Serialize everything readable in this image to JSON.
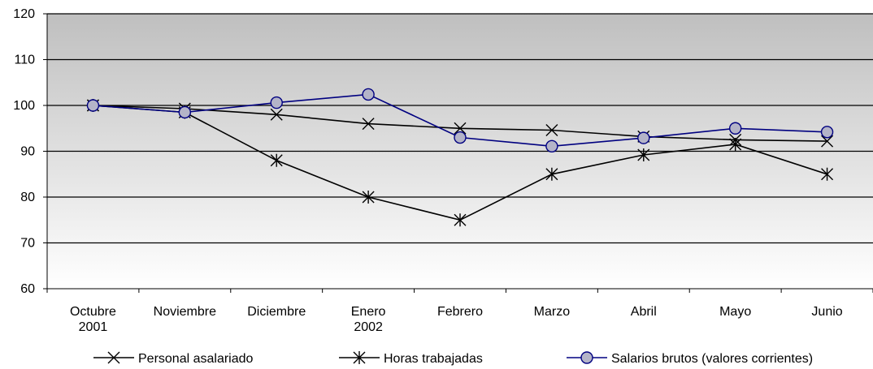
{
  "chart_data": {
    "type": "line",
    "categories": [
      [
        "Octubre",
        "2001"
      ],
      [
        "Noviembre"
      ],
      [
        "Diciembre"
      ],
      [
        "Enero",
        "2002"
      ],
      [
        "Febrero"
      ],
      [
        "Marzo"
      ],
      [
        "Abril"
      ],
      [
        "Mayo"
      ],
      [
        "Junio"
      ]
    ],
    "ylim": [
      60,
      120
    ],
    "yticks": [
      60,
      70,
      80,
      90,
      100,
      110,
      120
    ],
    "grid": true,
    "legend_position": "bottom",
    "series": [
      {
        "name": "Personal asalariado",
        "marker": "x",
        "color": "#000000",
        "values": [
          100,
          99.3,
          98,
          96,
          95,
          94.6,
          93.2,
          92.5,
          92.2
        ]
      },
      {
        "name": "Horas trabajadas",
        "marker": "asterisk",
        "color": "#000000",
        "values": [
          100,
          98.5,
          88,
          80,
          75,
          85,
          89.2,
          91.5,
          85
        ]
      },
      {
        "name": "Salarios brutos (valores corrientes)",
        "marker": "circle",
        "color": "#000080",
        "fill": "#b4b4c8",
        "values": [
          100,
          98.5,
          100.6,
          102.4,
          93,
          91.1,
          92.9,
          95,
          94.2
        ]
      }
    ]
  }
}
